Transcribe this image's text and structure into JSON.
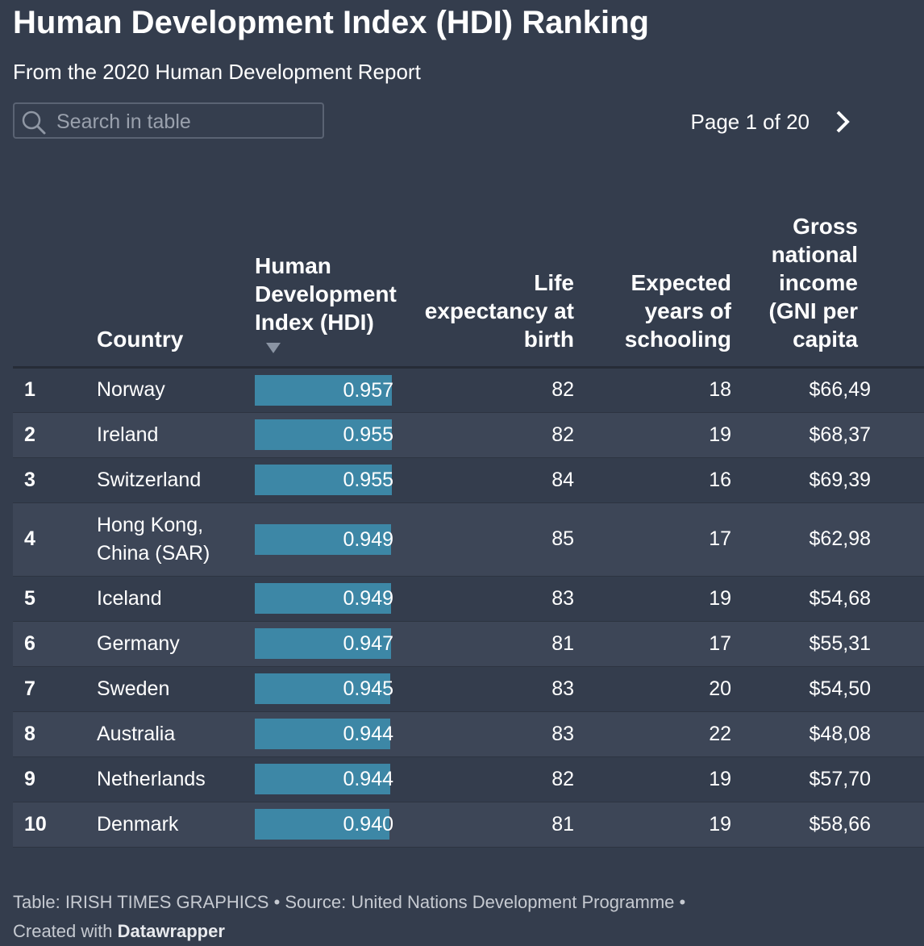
{
  "header": {
    "title": "Human Development Index (HDI) Ranking",
    "subtitle": "From the 2020 Human Development Report"
  },
  "search": {
    "placeholder": "Search in table"
  },
  "pagination": {
    "label": "Page 1 of 20"
  },
  "colors": {
    "background": "#343d4d",
    "bar": "#3d87a6",
    "row_alt": "#3d4657"
  },
  "chart_data": {
    "type": "table",
    "columns": {
      "country": "Country",
      "hdi": "Human Development Index (HDI)",
      "life": "Life expectancy at birth",
      "schooling": "Expected years of schooling",
      "gni": "Gross national income (GNI per capita"
    },
    "bar_scale_max": 1,
    "rows": [
      {
        "rank": "1",
        "country": "Norway",
        "hdi": 0.957,
        "hdi_label": "0.957",
        "life": "82",
        "schooling": "18",
        "gni": "$66,49"
      },
      {
        "rank": "2",
        "country": "Ireland",
        "hdi": 0.955,
        "hdi_label": "0.955",
        "life": "82",
        "schooling": "19",
        "gni": "$68,37"
      },
      {
        "rank": "3",
        "country": "Switzerland",
        "hdi": 0.955,
        "hdi_label": "0.955",
        "life": "84",
        "schooling": "16",
        "gni": "$69,39"
      },
      {
        "rank": "4",
        "country": "Hong Kong, China (SAR)",
        "hdi": 0.949,
        "hdi_label": "0.949",
        "life": "85",
        "schooling": "17",
        "gni": "$62,98"
      },
      {
        "rank": "5",
        "country": "Iceland",
        "hdi": 0.949,
        "hdi_label": "0.949",
        "life": "83",
        "schooling": "19",
        "gni": "$54,68"
      },
      {
        "rank": "6",
        "country": "Germany",
        "hdi": 0.947,
        "hdi_label": "0.947",
        "life": "81",
        "schooling": "17",
        "gni": "$55,31"
      },
      {
        "rank": "7",
        "country": "Sweden",
        "hdi": 0.945,
        "hdi_label": "0.945",
        "life": "83",
        "schooling": "20",
        "gni": "$54,50"
      },
      {
        "rank": "8",
        "country": "Australia",
        "hdi": 0.944,
        "hdi_label": "0.944",
        "life": "83",
        "schooling": "22",
        "gni": "$48,08"
      },
      {
        "rank": "9",
        "country": "Netherlands",
        "hdi": 0.944,
        "hdi_label": "0.944",
        "life": "82",
        "schooling": "19",
        "gni": "$57,70"
      },
      {
        "rank": "10",
        "country": "Denmark",
        "hdi": 0.94,
        "hdi_label": "0.940",
        "life": "81",
        "schooling": "19",
        "gni": "$58,66"
      }
    ]
  },
  "footer": {
    "line1": "Table: IRISH TIMES GRAPHICS • Source: United Nations Development Programme •",
    "created_prefix": "Created with",
    "created_brand": "Datawrapper"
  }
}
